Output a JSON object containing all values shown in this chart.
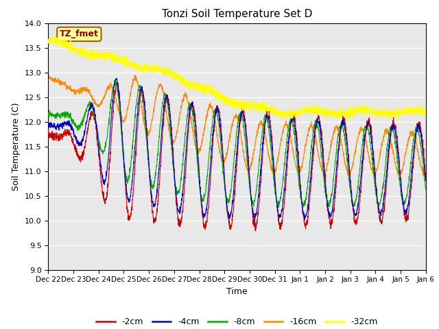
{
  "title": "Tonzi Soil Temperature Set D",
  "xlabel": "Time",
  "ylabel": "Soil Temperature (C)",
  "ylim": [
    9.0,
    14.0
  ],
  "yticks": [
    9.0,
    9.5,
    10.0,
    10.5,
    11.0,
    11.5,
    12.0,
    12.5,
    13.0,
    13.5,
    14.0
  ],
  "colors": {
    "-2cm": "#cc0000",
    "-4cm": "#0000cc",
    "-8cm": "#00aa00",
    "-16cm": "#ff8800",
    "-32cm": "#ffff00"
  },
  "legend_label": "TZ_fmet",
  "legend_box_facecolor": "#ffff99",
  "legend_box_edgecolor": "#996600",
  "legend_text_color": "#880000",
  "background_color": "#e8e8e8",
  "n_points": 2160,
  "end_day": 15.0,
  "xtick_positions": [
    0,
    1,
    2,
    3,
    4,
    5,
    6,
    7,
    8,
    9,
    10,
    11,
    12,
    13,
    14,
    15
  ],
  "xtick_labels": [
    "Dec 22",
    "Dec 23",
    "Dec 24",
    "Dec 25",
    "Dec 26",
    "Dec 27",
    "Dec 28",
    "Dec 29",
    "Dec 30",
    "Dec 31",
    "Jan 1",
    "Jan 2",
    "Jan 3",
    "Jan 4",
    "Jan 5",
    "Jan 6"
  ]
}
